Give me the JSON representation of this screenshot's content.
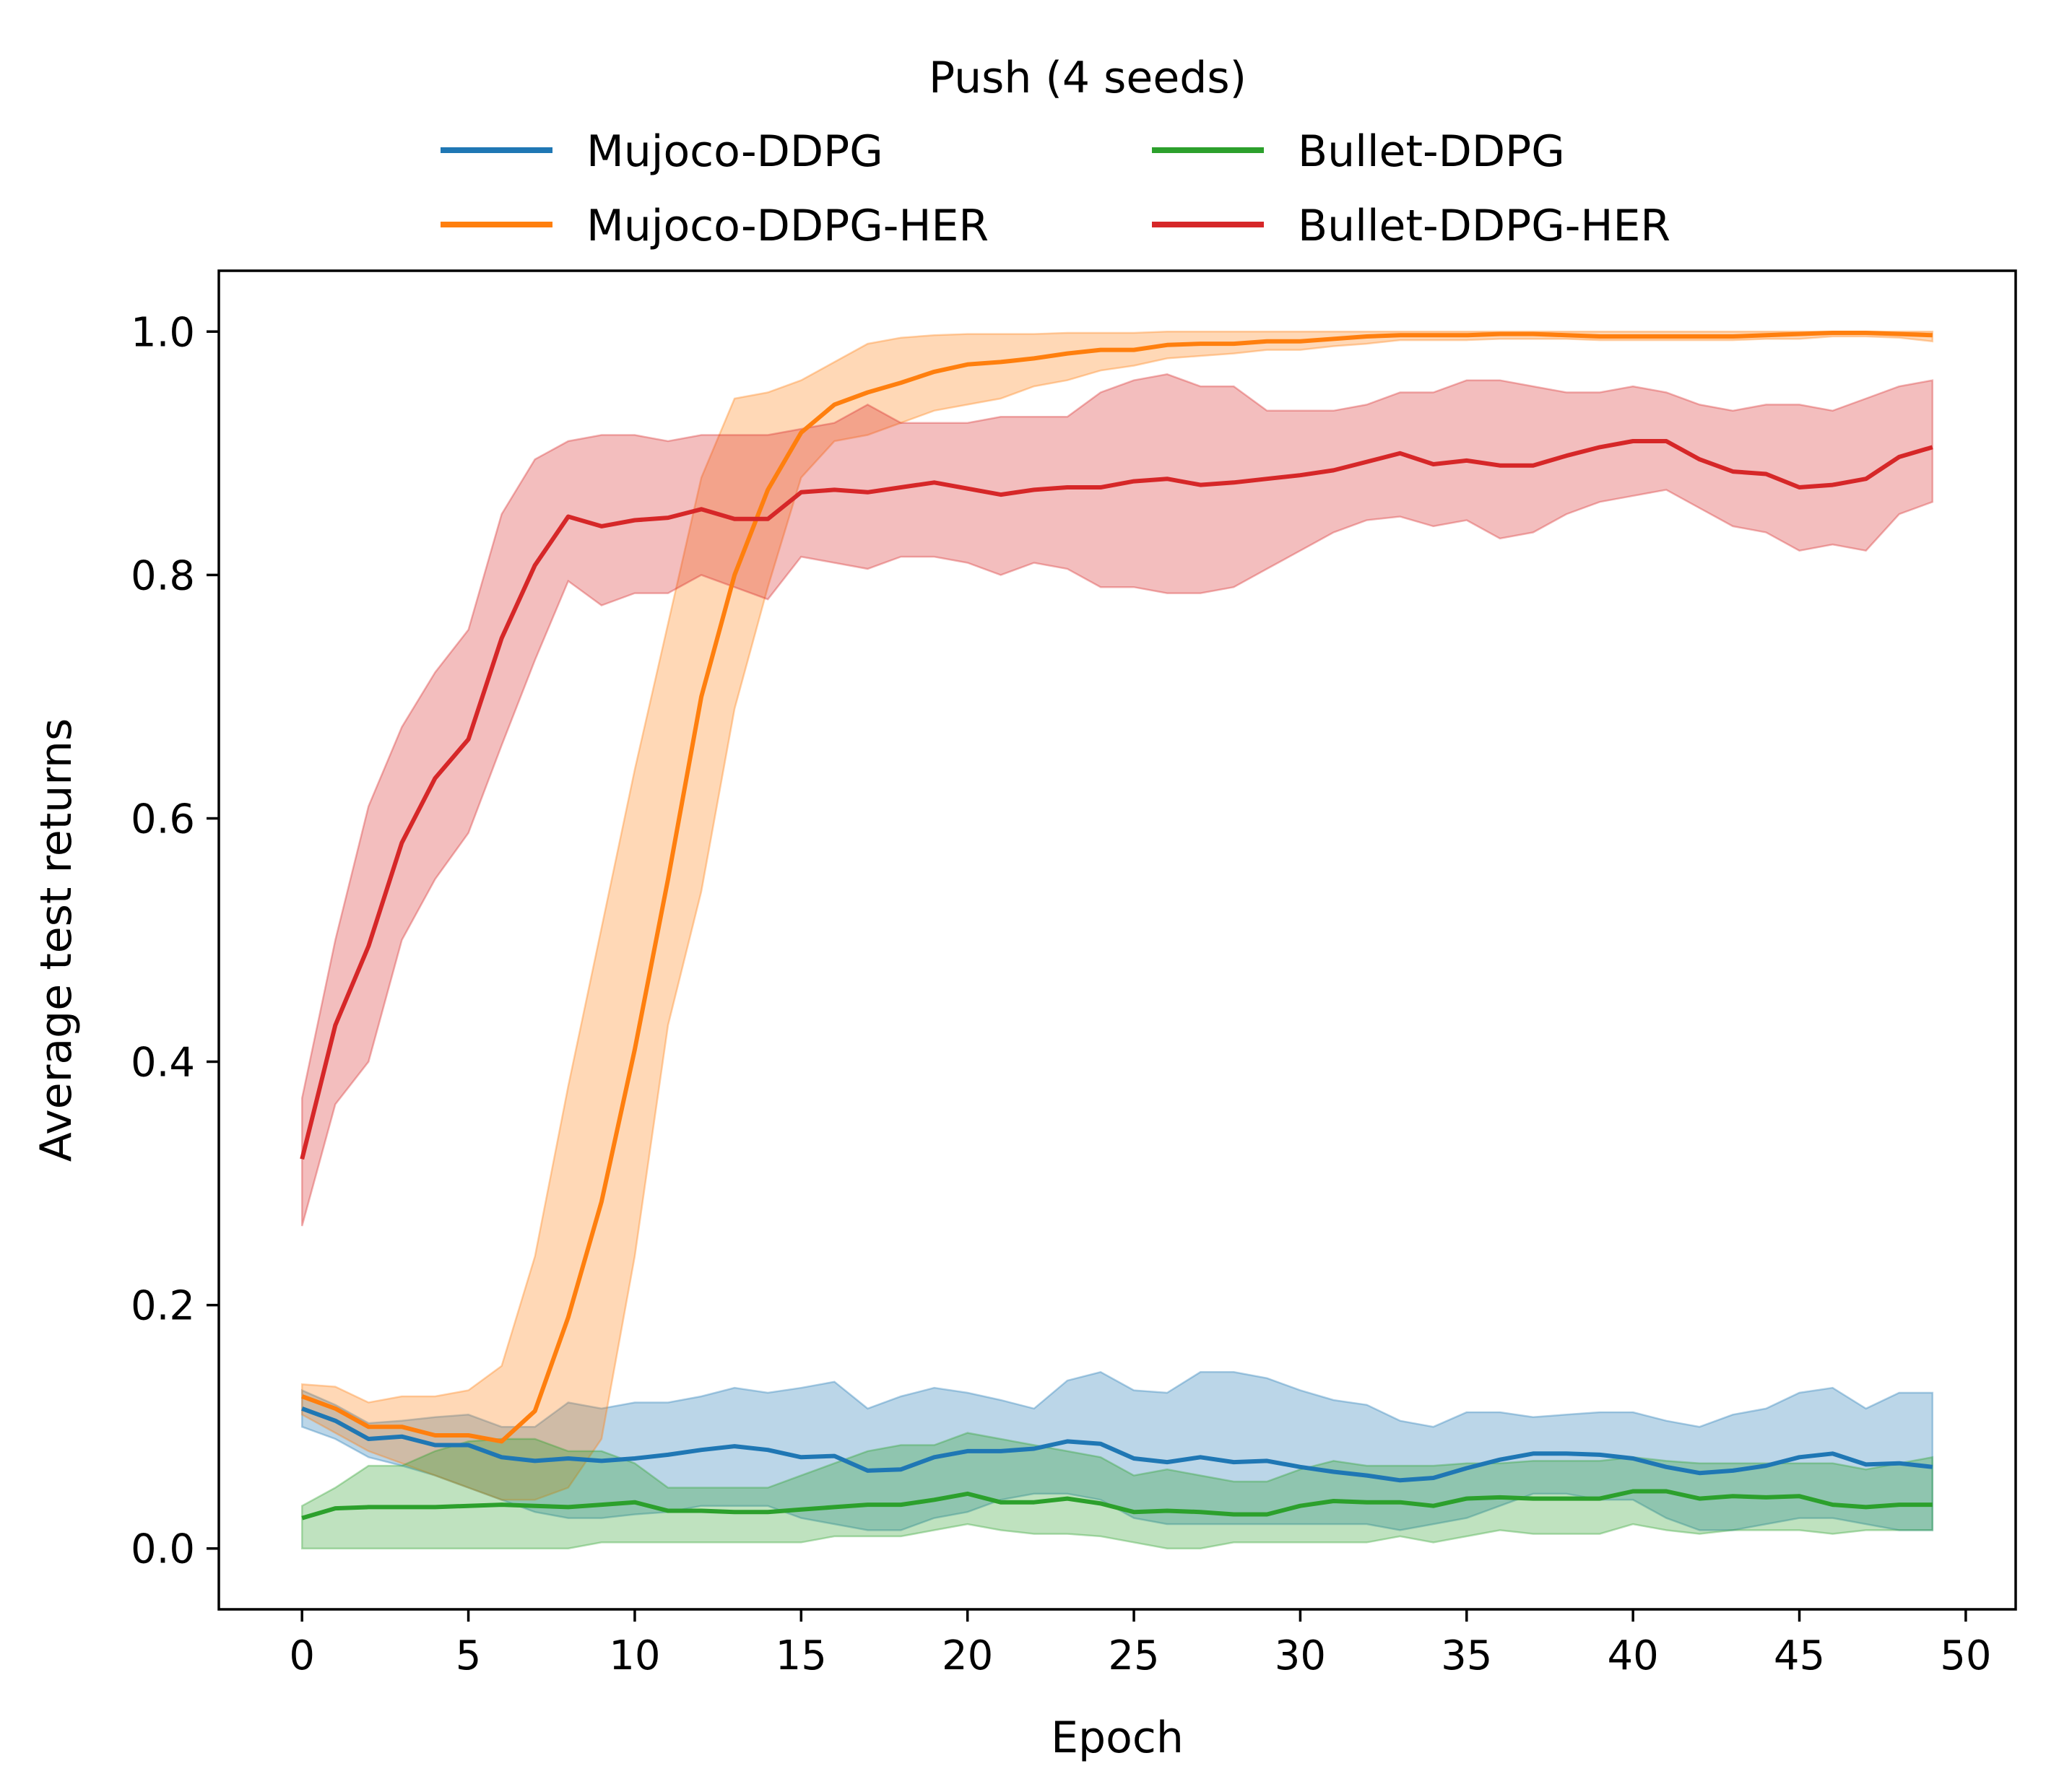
{
  "chart_data": {
    "type": "line",
    "legend": {
      "title": "Push (4 seeds)",
      "placement": "top-center",
      "columns": 2
    },
    "xlabel": "Epoch",
    "ylabel": "Average test returns",
    "xlim": [
      -2.5,
      51.5
    ],
    "ylim": [
      -0.05,
      1.05
    ],
    "xticks": [
      0,
      5,
      10,
      15,
      20,
      25,
      30,
      35,
      40,
      45,
      50
    ],
    "yticks": [
      0.0,
      0.2,
      0.4,
      0.6,
      0.8,
      1.0
    ],
    "ytick_labels": [
      "0.0",
      "0.2",
      "0.4",
      "0.6",
      "0.8",
      "1.0"
    ],
    "grid": false,
    "series": [
      {
        "name": "Mujoco-DDPG",
        "color": "#1f77b4",
        "mean": [
          0.115,
          0.105,
          0.09,
          0.092,
          0.085,
          0.085,
          0.075,
          0.072,
          0.074,
          0.072,
          0.074,
          0.077,
          0.081,
          0.084,
          0.081,
          0.075,
          0.076,
          0.064,
          0.065,
          0.075,
          0.08,
          0.08,
          0.082,
          0.088,
          0.086,
          0.074,
          0.071,
          0.075,
          0.071,
          0.072,
          0.067,
          0.063,
          0.06,
          0.056,
          0.058,
          0.066,
          0.073,
          0.078,
          0.078,
          0.077,
          0.074,
          0.067,
          0.062,
          0.064,
          0.068,
          0.075,
          0.078,
          0.069,
          0.07,
          0.067
        ],
        "upper": [
          0.13,
          0.118,
          0.103,
          0.105,
          0.108,
          0.11,
          0.1,
          0.1,
          0.12,
          0.115,
          0.12,
          0.12,
          0.125,
          0.132,
          0.128,
          0.132,
          0.137,
          0.115,
          0.125,
          0.132,
          0.128,
          0.122,
          0.115,
          0.138,
          0.145,
          0.13,
          0.128,
          0.145,
          0.145,
          0.14,
          0.13,
          0.122,
          0.118,
          0.105,
          0.1,
          0.112,
          0.112,
          0.108,
          0.11,
          0.112,
          0.112,
          0.105,
          0.1,
          0.11,
          0.115,
          0.128,
          0.132,
          0.115,
          0.128,
          0.128
        ],
        "lower": [
          0.1,
          0.09,
          0.075,
          0.068,
          0.06,
          0.05,
          0.04,
          0.03,
          0.025,
          0.025,
          0.028,
          0.03,
          0.035,
          0.035,
          0.035,
          0.025,
          0.02,
          0.015,
          0.015,
          0.025,
          0.03,
          0.04,
          0.045,
          0.045,
          0.04,
          0.025,
          0.02,
          0.02,
          0.02,
          0.02,
          0.02,
          0.02,
          0.02,
          0.015,
          0.02,
          0.025,
          0.035,
          0.045,
          0.045,
          0.04,
          0.04,
          0.025,
          0.015,
          0.015,
          0.02,
          0.025,
          0.025,
          0.02,
          0.015,
          0.015
        ]
      },
      {
        "name": "Mujoco-DDPG-HER",
        "color": "#ff7f0e",
        "mean": [
          0.125,
          0.115,
          0.1,
          0.1,
          0.093,
          0.093,
          0.088,
          0.113,
          0.19,
          0.285,
          0.41,
          0.55,
          0.7,
          0.8,
          0.87,
          0.917,
          0.94,
          0.95,
          0.958,
          0.967,
          0.973,
          0.975,
          0.978,
          0.982,
          0.985,
          0.985,
          0.989,
          0.99,
          0.99,
          0.992,
          0.992,
          0.994,
          0.996,
          0.997,
          0.997,
          0.997,
          0.998,
          0.998,
          0.997,
          0.996,
          0.996,
          0.996,
          0.996,
          0.996,
          0.997,
          0.998,
          0.999,
          0.999,
          0.998,
          0.997
        ],
        "upper": [
          0.135,
          0.133,
          0.12,
          0.125,
          0.125,
          0.13,
          0.15,
          0.24,
          0.38,
          0.51,
          0.64,
          0.76,
          0.88,
          0.945,
          0.95,
          0.96,
          0.975,
          0.99,
          0.995,
          0.997,
          0.998,
          0.998,
          0.998,
          0.999,
          0.999,
          0.999,
          1.0,
          1.0,
          1.0,
          1.0,
          1.0,
          1.0,
          1.0,
          1.0,
          1.0,
          1.0,
          1.0,
          1.0,
          1.0,
          1.0,
          1.0,
          1.0,
          1.0,
          1.0,
          1.0,
          1.0,
          1.0,
          1.0,
          1.0,
          1.0
        ],
        "lower": [
          0.11,
          0.095,
          0.08,
          0.07,
          0.06,
          0.05,
          0.04,
          0.04,
          0.05,
          0.09,
          0.24,
          0.43,
          0.54,
          0.69,
          0.79,
          0.88,
          0.91,
          0.915,
          0.925,
          0.935,
          0.94,
          0.945,
          0.955,
          0.96,
          0.968,
          0.972,
          0.978,
          0.98,
          0.982,
          0.985,
          0.985,
          0.988,
          0.99,
          0.993,
          0.993,
          0.993,
          0.994,
          0.994,
          0.994,
          0.993,
          0.993,
          0.993,
          0.993,
          0.993,
          0.994,
          0.994,
          0.996,
          0.996,
          0.995,
          0.992
        ]
      },
      {
        "name": "Bullet-DDPG",
        "color": "#2ca02c",
        "mean": [
          0.025,
          0.033,
          0.034,
          0.034,
          0.034,
          0.035,
          0.036,
          0.035,
          0.034,
          0.036,
          0.038,
          0.031,
          0.031,
          0.03,
          0.03,
          0.032,
          0.034,
          0.036,
          0.036,
          0.04,
          0.045,
          0.038,
          0.038,
          0.041,
          0.037,
          0.03,
          0.031,
          0.03,
          0.028,
          0.028,
          0.035,
          0.039,
          0.038,
          0.038,
          0.035,
          0.041,
          0.042,
          0.041,
          0.041,
          0.041,
          0.047,
          0.047,
          0.041,
          0.043,
          0.042,
          0.043,
          0.036,
          0.034,
          0.036,
          0.036
        ],
        "upper": [
          0.035,
          0.05,
          0.068,
          0.068,
          0.08,
          0.088,
          0.09,
          0.09,
          0.08,
          0.08,
          0.07,
          0.05,
          0.05,
          0.05,
          0.05,
          0.06,
          0.07,
          0.08,
          0.085,
          0.085,
          0.095,
          0.09,
          0.085,
          0.08,
          0.075,
          0.06,
          0.065,
          0.06,
          0.055,
          0.055,
          0.065,
          0.072,
          0.068,
          0.068,
          0.068,
          0.07,
          0.07,
          0.072,
          0.072,
          0.072,
          0.075,
          0.072,
          0.07,
          0.07,
          0.07,
          0.07,
          0.07,
          0.065,
          0.07,
          0.075
        ],
        "lower": [
          0.0,
          0.0,
          0.0,
          0.0,
          0.0,
          0.0,
          0.0,
          0.0,
          0.0,
          0.005,
          0.005,
          0.005,
          0.005,
          0.005,
          0.005,
          0.005,
          0.01,
          0.01,
          0.01,
          0.015,
          0.02,
          0.015,
          0.012,
          0.012,
          0.01,
          0.005,
          0.0,
          0.0,
          0.005,
          0.005,
          0.005,
          0.005,
          0.005,
          0.01,
          0.005,
          0.01,
          0.015,
          0.012,
          0.012,
          0.012,
          0.02,
          0.015,
          0.012,
          0.015,
          0.015,
          0.015,
          0.012,
          0.015,
          0.015,
          0.015
        ]
      },
      {
        "name": "Bullet-DDPG-HER",
        "color": "#d62728",
        "mean": [
          0.32,
          0.43,
          0.495,
          0.58,
          0.633,
          0.665,
          0.748,
          0.808,
          0.848,
          0.84,
          0.845,
          0.847,
          0.854,
          0.846,
          0.846,
          0.868,
          0.87,
          0.868,
          0.872,
          0.876,
          0.871,
          0.866,
          0.87,
          0.872,
          0.872,
          0.877,
          0.879,
          0.874,
          0.876,
          0.879,
          0.882,
          0.886,
          0.893,
          0.9,
          0.891,
          0.894,
          0.89,
          0.89,
          0.898,
          0.905,
          0.91,
          0.91,
          0.895,
          0.885,
          0.883,
          0.872,
          0.874,
          0.879,
          0.897,
          0.905
        ],
        "upper": [
          0.37,
          0.5,
          0.61,
          0.675,
          0.72,
          0.755,
          0.85,
          0.895,
          0.91,
          0.915,
          0.915,
          0.91,
          0.915,
          0.915,
          0.915,
          0.92,
          0.925,
          0.94,
          0.925,
          0.925,
          0.925,
          0.93,
          0.93,
          0.93,
          0.95,
          0.96,
          0.965,
          0.955,
          0.955,
          0.935,
          0.935,
          0.935,
          0.94,
          0.95,
          0.95,
          0.96,
          0.96,
          0.955,
          0.95,
          0.95,
          0.955,
          0.95,
          0.94,
          0.935,
          0.94,
          0.94,
          0.935,
          0.945,
          0.955,
          0.96
        ],
        "lower": [
          0.265,
          0.365,
          0.4,
          0.5,
          0.55,
          0.588,
          0.66,
          0.73,
          0.795,
          0.775,
          0.785,
          0.785,
          0.8,
          0.79,
          0.78,
          0.815,
          0.81,
          0.805,
          0.815,
          0.815,
          0.81,
          0.8,
          0.81,
          0.805,
          0.79,
          0.79,
          0.785,
          0.785,
          0.79,
          0.805,
          0.82,
          0.835,
          0.845,
          0.848,
          0.84,
          0.845,
          0.83,
          0.835,
          0.85,
          0.86,
          0.865,
          0.87,
          0.855,
          0.84,
          0.835,
          0.82,
          0.825,
          0.82,
          0.85,
          0.86
        ]
      }
    ]
  }
}
